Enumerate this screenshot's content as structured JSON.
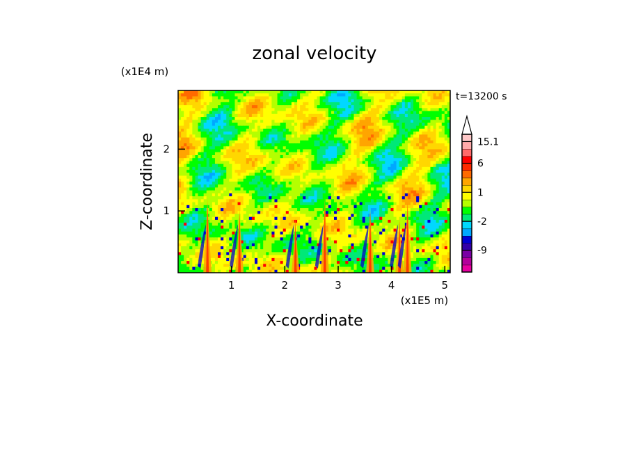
{
  "chart_data": {
    "type": "heatmap",
    "title": "zonal velocity",
    "xlabel": "X-coordinate",
    "ylabel": "Z-coordinate",
    "x_scale_label": "(x1E5 m)",
    "y_scale_label": "(x1E4 m)",
    "time_label": "t=13200 s",
    "xlim": [
      0.0,
      5.1
    ],
    "ylim": [
      0.0,
      2.95
    ],
    "x_ticks": [
      1,
      2,
      3,
      4,
      5
    ],
    "y_ticks": [
      1,
      2
    ],
    "colorbar": {
      "levels": [
        {
          "color": "#e600a0"
        },
        {
          "color": "#b4009b"
        },
        {
          "color": "#7a00a5"
        },
        {
          "color": "#3200a8"
        },
        {
          "color": "#0000d2"
        },
        {
          "color": "#00a8ff"
        },
        {
          "color": "#00d8ff"
        },
        {
          "color": "#00e878"
        },
        {
          "color": "#00ff00"
        },
        {
          "color": "#b4ff00"
        },
        {
          "color": "#ffff00"
        },
        {
          "color": "#ffd700"
        },
        {
          "color": "#ffa500"
        },
        {
          "color": "#ff6a00"
        },
        {
          "color": "#ff2a00"
        },
        {
          "color": "#ff0000"
        },
        {
          "color": "#ff6a6a"
        },
        {
          "color": "#ffaaaa"
        },
        {
          "color": "#ffc8c8"
        }
      ],
      "tick_labels": [
        {
          "label": "15.1",
          "level": 18
        },
        {
          "label": "6",
          "level": 15
        },
        {
          "label": "1",
          "level": 11
        },
        {
          "label": "-2",
          "level": 7
        },
        {
          "label": "-9",
          "level": 3
        }
      ]
    },
    "field": {
      "description_of_pattern": "",
      "dominant_colors": [
        "#00ff00",
        "#b4ff00",
        "#ffff00",
        "#ffd700",
        "#ffa500",
        "#00d8ff"
      ],
      "jet_x": [
        0.55,
        1.15,
        2.2,
        2.75,
        3.6,
        4.15,
        4.3
      ]
    }
  }
}
